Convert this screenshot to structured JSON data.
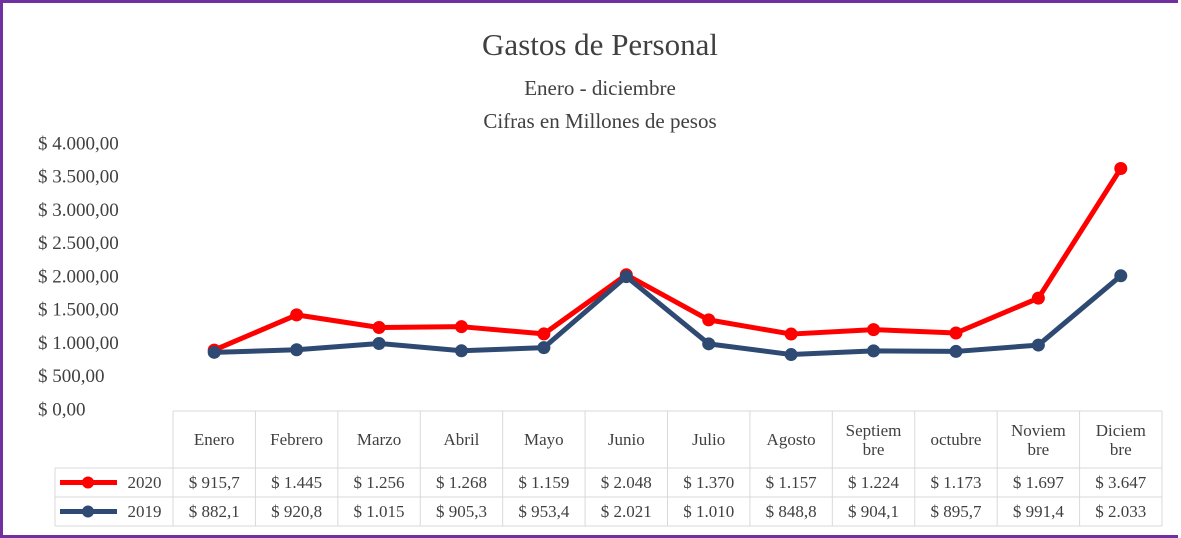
{
  "chart_data": {
    "type": "line",
    "title": "Gastos de Personal",
    "subtitle": [
      "Enero  - diciembre",
      "Cifras en Millones de pesos"
    ],
    "categories": [
      "Enero",
      "Febrero",
      "Marzo",
      "Abril",
      "Mayo",
      "Junio",
      "Julio",
      "Agosto",
      "Septiembre",
      "octubre",
      "Noviembre",
      "Diciembre"
    ],
    "series": [
      {
        "name": "2020",
        "color": "#ff0000",
        "values": [
          915.7,
          1445,
          1256,
          1268,
          1159,
          2048,
          1370,
          1157,
          1224,
          1173,
          1697,
          3647
        ],
        "value_labels": [
          "$ 915,7",
          "$ 1.445",
          "$ 1.256",
          "$ 1.268",
          "$ 1.159",
          "$ 2.048",
          "$ 1.370",
          "$ 1.157",
          "$ 1.224",
          "$ 1.173",
          "$ 1.697",
          "$ 3.647"
        ]
      },
      {
        "name": "2019",
        "color": "#2e4a72",
        "values": [
          882.1,
          920.8,
          1015,
          905.3,
          953.4,
          2021,
          1010,
          848.8,
          904.1,
          895.7,
          991.4,
          2033
        ],
        "value_labels": [
          "$ 882,1",
          "$ 920,8",
          "$ 1.015",
          "$ 905,3",
          "$ 953,4",
          "$ 2.021",
          "$ 1.010",
          "$ 848,8",
          "$ 904,1",
          "$ 895,7",
          "$ 991,4",
          "$ 2.033"
        ]
      }
    ],
    "ylim": [
      0,
      4000
    ],
    "yticks": [
      {
        "value": 0,
        "label": "$ 0,00"
      },
      {
        "value": 500,
        "label": "$ 500,00"
      },
      {
        "value": 1000,
        "label": "$ 1.000,00"
      },
      {
        "value": 1500,
        "label": "$ 1.500,00"
      },
      {
        "value": 2000,
        "label": "$ 2.000,00"
      },
      {
        "value": 2500,
        "label": "$ 2.500,00"
      },
      {
        "value": 3000,
        "label": "$ 3.000,00"
      },
      {
        "value": 3500,
        "label": "$ 3.500,00"
      },
      {
        "value": 4000,
        "label": "$ 4.000,00"
      }
    ],
    "grid": false
  }
}
